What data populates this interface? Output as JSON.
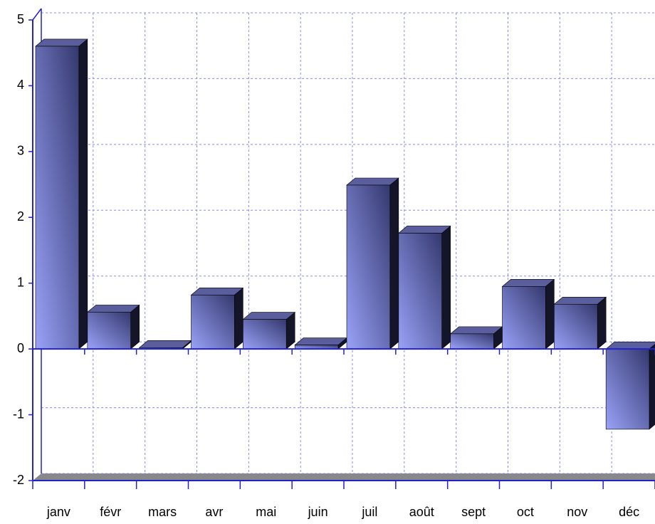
{
  "chart_data": {
    "type": "bar",
    "categories": [
      "janv",
      "févr",
      "mars",
      "avr",
      "mai",
      "juin",
      "juil",
      "août",
      "sept",
      "oct",
      "nov",
      "déc"
    ],
    "values": [
      4.6,
      0.56,
      0.02,
      0.82,
      0.45,
      0.06,
      2.49,
      1.76,
      0.23,
      0.95,
      0.68,
      -1.22
    ],
    "color": "#6a72c8",
    "ylim": [
      -2,
      5
    ],
    "yticks": [
      -2,
      -1,
      0,
      1,
      2,
      3,
      4,
      5
    ],
    "grid": true
  }
}
